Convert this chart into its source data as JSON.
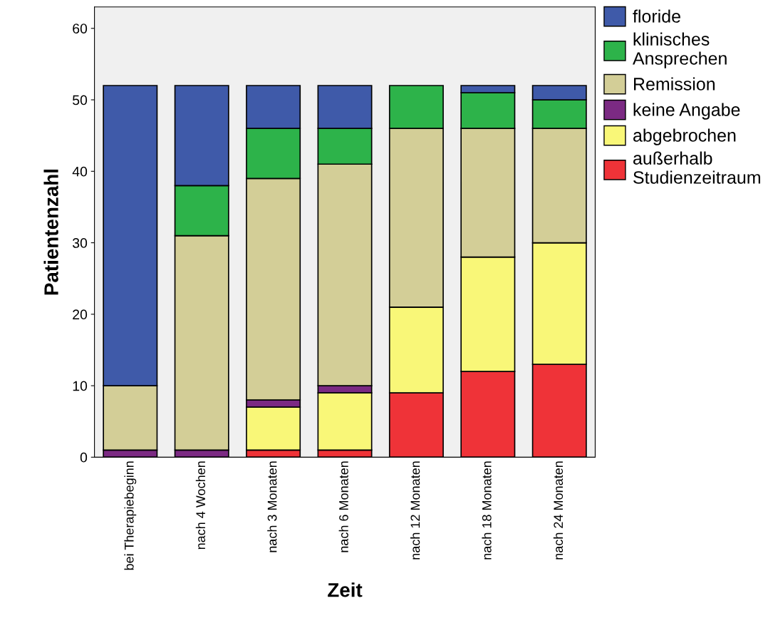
{
  "chart_data": {
    "type": "bar",
    "stacked": true,
    "xlabel": "Zeit",
    "ylabel": "Patientenzahl",
    "categories": [
      "bei Therapiebeginn",
      "nach 4 Wochen",
      "nach 3 Monaten",
      "nach 6 Monaten",
      "nach 12 Monaten",
      "nach 18 Monaten",
      "nach 24 Monaten"
    ],
    "series": [
      {
        "name": "außerhalb\nStudienzeitraum",
        "color": "#ef3338",
        "values": [
          0,
          0,
          1,
          1,
          9,
          12,
          13
        ]
      },
      {
        "name": "abgebrochen",
        "color": "#f9f778",
        "values": [
          0,
          0,
          6,
          8,
          12,
          16,
          17
        ]
      },
      {
        "name": "keine Angabe",
        "color": "#7b2a83",
        "values": [
          1,
          1,
          1,
          1,
          0,
          0,
          0
        ]
      },
      {
        "name": "Remission",
        "color": "#d3ce97",
        "values": [
          9,
          30,
          31,
          31,
          25,
          18,
          16
        ]
      },
      {
        "name": "klinisches\nAnsprechen",
        "color": "#2db34a",
        "values": [
          0,
          7,
          7,
          5,
          6,
          5,
          4
        ]
      },
      {
        "name": "floride",
        "color": "#3f5aa9",
        "values": [
          42,
          14,
          6,
          6,
          0,
          1,
          2
        ]
      }
    ],
    "ylim": [
      0,
      63
    ],
    "yticks": [
      0,
      10,
      20,
      30,
      40,
      50,
      60
    ],
    "grid": false,
    "legend": "top right"
  }
}
